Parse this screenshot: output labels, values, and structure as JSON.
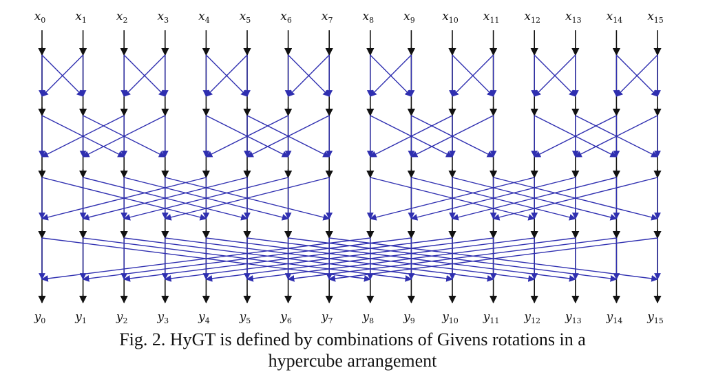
{
  "diagram": {
    "inputs": [
      "x0",
      "x1",
      "x2",
      "x3",
      "x4",
      "x5",
      "x6",
      "x7",
      "x8",
      "x9",
      "x10",
      "x11",
      "x12",
      "x13",
      "x14",
      "x15"
    ],
    "outputs": [
      "y0",
      "y1",
      "y2",
      "y3",
      "y4",
      "y5",
      "y6",
      "y7",
      "y8",
      "y9",
      "y10",
      "y11",
      "y12",
      "y13",
      "y14",
      "y15"
    ],
    "stages": [
      1,
      2,
      4,
      8
    ],
    "colors": {
      "wire": "#111111",
      "rotation": "#2f2fb0"
    }
  },
  "caption": {
    "line1": "Fig. 2. HyGT is defined by combinations of Givens rotations in a",
    "line2": "hypercube arrangement"
  }
}
